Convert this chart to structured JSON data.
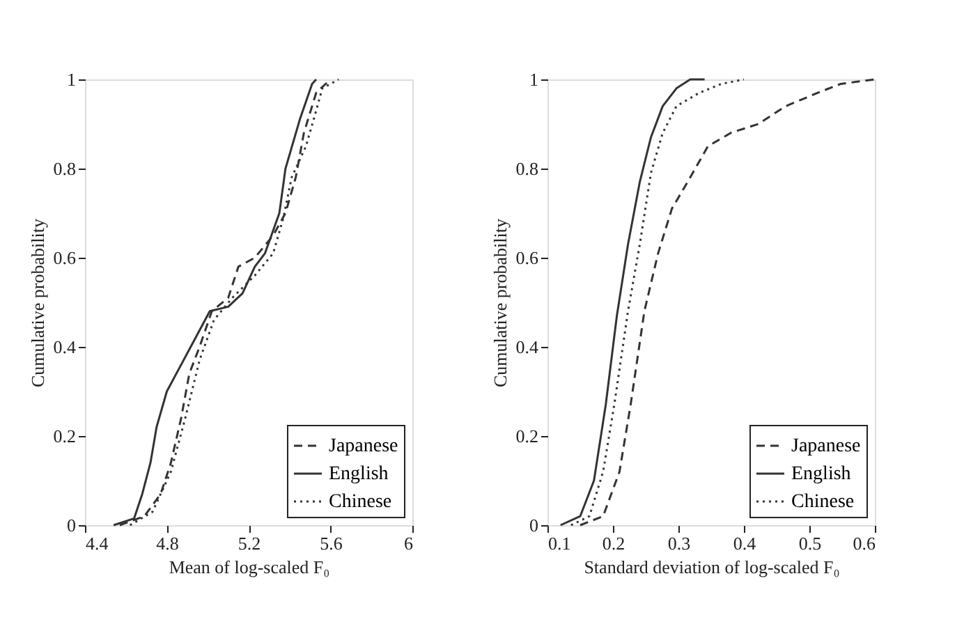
{
  "chart_data": [
    {
      "type": "line",
      "xlabel": "Mean of log-scaled F₀",
      "ylabel": "Cumulative probability",
      "xlim": [
        4.4,
        6
      ],
      "xticks": [
        4.4,
        4.8,
        5.2,
        5.6,
        6
      ],
      "ylim": [
        0,
        1
      ],
      "yticks": [
        0,
        0.2,
        0.4,
        0.6,
        0.8,
        1
      ],
      "grid": false,
      "legend": "bottom right",
      "marker": "none",
      "series": [
        {
          "name": "Japanese",
          "color": "#333333",
          "line_style": "dashed",
          "x": [
            4.57,
            4.69,
            4.77,
            4.82,
            4.87,
            4.91,
            4.96,
            5.02,
            5.1,
            5.15,
            5.23,
            5.32,
            5.38,
            5.43,
            5.47,
            5.53,
            5.6
          ],
          "values": [
            0,
            0.02,
            0.07,
            0.14,
            0.24,
            0.34,
            0.4,
            0.48,
            0.51,
            0.58,
            0.6,
            0.65,
            0.7,
            0.78,
            0.88,
            0.97,
            1.0
          ]
        },
        {
          "name": "English",
          "color": "#333333",
          "line_style": "solid",
          "x": [
            4.54,
            4.64,
            4.68,
            4.72,
            4.75,
            4.8,
            4.87,
            4.94,
            5.01,
            5.1,
            5.17,
            5.23,
            5.28,
            5.35,
            5.38,
            5.45,
            5.51,
            5.53
          ],
          "values": [
            0,
            0.015,
            0.07,
            0.14,
            0.22,
            0.3,
            0.36,
            0.42,
            0.48,
            0.49,
            0.52,
            0.58,
            0.61,
            0.7,
            0.8,
            0.91,
            0.99,
            1.0
          ]
        },
        {
          "name": "Chinese",
          "color": "#333333",
          "line_style": "dotted",
          "x": [
            4.62,
            4.73,
            4.82,
            4.89,
            4.96,
            5.03,
            5.12,
            5.23,
            5.32,
            5.37,
            5.41,
            5.48,
            5.53,
            5.56,
            5.64
          ],
          "values": [
            0,
            0.03,
            0.12,
            0.24,
            0.37,
            0.46,
            0.51,
            0.56,
            0.61,
            0.69,
            0.78,
            0.85,
            0.93,
            0.98,
            1.0
          ]
        }
      ]
    },
    {
      "type": "line",
      "xlabel": "Standard deviation of log-scaled F₀",
      "ylabel": "Cumulative probability",
      "xlim": [
        0.1,
        0.6
      ],
      "xticks": [
        0.1,
        0.2,
        0.3,
        0.4,
        0.5,
        0.6
      ],
      "ylim": [
        0,
        1
      ],
      "yticks": [
        0,
        0.2,
        0.4,
        0.6,
        0.8,
        1
      ],
      "grid": false,
      "legend": "bottom right",
      "marker": "none",
      "series": [
        {
          "name": "Japanese",
          "color": "#333333",
          "line_style": "dashed",
          "x": [
            0.15,
            0.185,
            0.21,
            0.227,
            0.248,
            0.269,
            0.29,
            0.318,
            0.345,
            0.38,
            0.422,
            0.464,
            0.513,
            0.548,
            0.6
          ],
          "values": [
            0,
            0.02,
            0.12,
            0.27,
            0.48,
            0.61,
            0.71,
            0.78,
            0.85,
            0.88,
            0.9,
            0.94,
            0.97,
            0.99,
            1.0
          ]
        },
        {
          "name": "English",
          "color": "#333333",
          "line_style": "solid",
          "x": [
            0.12,
            0.15,
            0.171,
            0.189,
            0.206,
            0.223,
            0.241,
            0.258,
            0.276,
            0.297,
            0.318,
            0.34
          ],
          "values": [
            0,
            0.02,
            0.1,
            0.27,
            0.47,
            0.63,
            0.77,
            0.87,
            0.94,
            0.98,
            1.0,
            1.0
          ]
        },
        {
          "name": "Chinese",
          "color": "#333333",
          "line_style": "dotted",
          "x": [
            0.136,
            0.164,
            0.185,
            0.202,
            0.223,
            0.241,
            0.258,
            0.276,
            0.297,
            0.332,
            0.366,
            0.4
          ],
          "values": [
            0,
            0.02,
            0.12,
            0.27,
            0.48,
            0.63,
            0.79,
            0.88,
            0.94,
            0.97,
            0.99,
            1.0
          ]
        }
      ]
    }
  ]
}
